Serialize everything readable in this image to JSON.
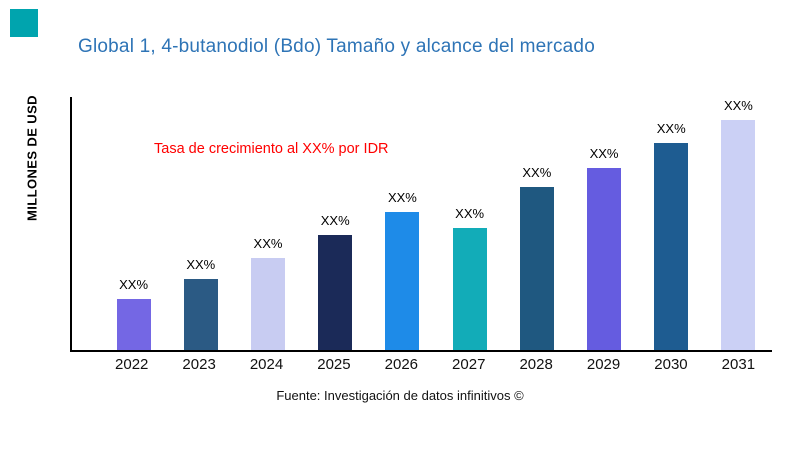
{
  "page": {
    "title": "Global 1, 4-butanodiol (Bdo) Tamaño y alcance del mercado",
    "annotation": "Tasa de crecimiento al XX% por IDR",
    "ylabel": "MILLONES DE USD",
    "source": "Fuente: Investigación de datos infinitivos ©"
  },
  "colors": {
    "title": "#2E74B6",
    "annotation": "#FF0000",
    "corner_square": "#00A4AE",
    "axis": "#000000",
    "background": "#FFFFFF"
  },
  "chart_data": {
    "type": "bar",
    "title": "Global 1, 4-butanodiol (Bdo) Tamaño y alcance del mercado",
    "xlabel": "",
    "ylabel": "MILLONES DE USD",
    "categories": [
      "2022",
      "2023",
      "2024",
      "2025",
      "2026",
      "2027",
      "2028",
      "2029",
      "2030",
      "2031"
    ],
    "values": [
      22,
      31,
      40,
      50,
      60,
      53,
      71,
      79,
      90,
      100
    ],
    "value_labels": [
      "XX%",
      "XX%",
      "XX%",
      "XX%",
      "XX%",
      "XX%",
      "XX%",
      "XX%",
      "XX%",
      "XX%"
    ],
    "bar_colors": [
      "#7467E4",
      "#2B5A84",
      "#C8CCF2",
      "#1B2A58",
      "#1E8BE8",
      "#12ACB8",
      "#1F5880",
      "#655CE0",
      "#1E5C91",
      "#CBD0F5"
    ],
    "ylim": [
      0,
      110
    ],
    "grid": false,
    "legend": "none",
    "annotation": "Tasa de crecimiento al XX% por IDR",
    "source": "Fuente: Investigación de datos infinitivos ©"
  }
}
